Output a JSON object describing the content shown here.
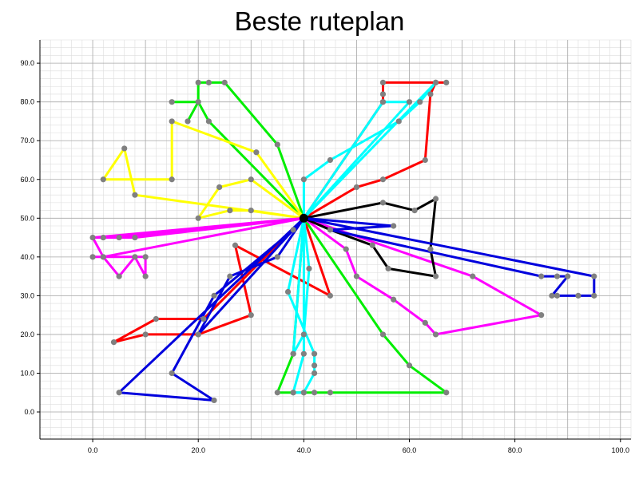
{
  "chart_data": {
    "type": "line",
    "title": "Beste ruteplan",
    "xlabel": "",
    "ylabel": "",
    "xlim": [
      -10,
      102
    ],
    "ylim": [
      -7,
      96
    ],
    "xticks": [
      0,
      20,
      40,
      60,
      80,
      100
    ],
    "yticks": [
      0,
      10,
      20,
      30,
      40,
      50,
      60,
      70,
      80,
      90
    ],
    "xtick_labels": [
      "0.0",
      "20.0",
      "40.0",
      "60.0",
      "80.0",
      "100.0"
    ],
    "ytick_labels": [
      "0.0",
      "10.0",
      "20.0",
      "30.0",
      "40.0",
      "50.0",
      "60.0",
      "70.0",
      "80.0",
      "90.0"
    ],
    "grid": true,
    "depot": [
      40,
      50
    ],
    "series": [
      {
        "name": "red",
        "color": "#ff0000",
        "points": [
          [
            40,
            50
          ],
          [
            45,
            30
          ],
          [
            27,
            43
          ],
          [
            30,
            25
          ],
          [
            20,
            20
          ],
          [
            10,
            20
          ],
          [
            4,
            18
          ],
          [
            12,
            24
          ],
          [
            21,
            24
          ],
          [
            40,
            50
          ],
          [
            50,
            58
          ],
          [
            55,
            60
          ],
          [
            63,
            65
          ],
          [
            64,
            82
          ],
          [
            65,
            85
          ],
          [
            67,
            85
          ],
          [
            55,
            85
          ],
          [
            55,
            82
          ],
          [
            55,
            80
          ],
          [
            40,
            50
          ]
        ]
      },
      {
        "name": "green",
        "color": "#00ee00",
        "points": [
          [
            40,
            50
          ],
          [
            35,
            69
          ],
          [
            25,
            85
          ],
          [
            22,
            85
          ],
          [
            20,
            85
          ],
          [
            20,
            80
          ],
          [
            18,
            75
          ],
          [
            20,
            80
          ],
          [
            15,
            80
          ],
          [
            20,
            80
          ],
          [
            22,
            75
          ],
          [
            40,
            50
          ],
          [
            55,
            20
          ],
          [
            60,
            12
          ],
          [
            67,
            5
          ],
          [
            45,
            5
          ],
          [
            42,
            5
          ],
          [
            40,
            5
          ],
          [
            38,
            5
          ],
          [
            35,
            5
          ],
          [
            38,
            15
          ],
          [
            40,
            50
          ]
        ]
      },
      {
        "name": "yellow",
        "color": "#ffff00",
        "points": [
          [
            40,
            50
          ],
          [
            31,
            67
          ],
          [
            15,
            75
          ],
          [
            15,
            60
          ],
          [
            2,
            60
          ],
          [
            6,
            68
          ],
          [
            8,
            56
          ],
          [
            40,
            50
          ],
          [
            30,
            52
          ],
          [
            26,
            52
          ],
          [
            20,
            50
          ],
          [
            24,
            58
          ],
          [
            30,
            60
          ],
          [
            40,
            50
          ]
        ]
      },
      {
        "name": "magenta",
        "color": "#ff00ff",
        "points": [
          [
            40,
            50
          ],
          [
            5,
            45
          ],
          [
            2,
            45
          ],
          [
            0,
            45
          ],
          [
            8,
            45
          ],
          [
            40,
            50
          ],
          [
            2,
            40
          ],
          [
            0,
            40
          ],
          [
            8,
            40
          ],
          [
            10,
            40
          ],
          [
            10,
            35
          ],
          [
            8,
            40
          ],
          [
            5,
            35
          ],
          [
            2,
            40
          ],
          [
            0,
            45
          ],
          [
            40,
            50
          ],
          [
            48,
            42
          ],
          [
            50,
            35
          ],
          [
            57,
            29
          ],
          [
            63,
            23
          ],
          [
            65,
            20
          ],
          [
            85,
            25
          ],
          [
            72,
            35
          ],
          [
            40,
            50
          ]
        ]
      },
      {
        "name": "cyan",
        "color": "#00ffff",
        "points": [
          [
            40,
            50
          ],
          [
            40,
            60
          ],
          [
            45,
            65
          ],
          [
            58,
            75
          ],
          [
            62,
            80
          ],
          [
            65,
            85
          ],
          [
            40,
            50
          ],
          [
            60,
            80
          ],
          [
            55,
            80
          ],
          [
            40,
            50
          ],
          [
            41,
            37
          ],
          [
            40,
            20
          ],
          [
            38,
            15
          ],
          [
            40,
            50
          ],
          [
            37,
            31
          ],
          [
            42,
            15
          ],
          [
            42,
            12
          ],
          [
            42,
            10
          ],
          [
            40,
            5
          ],
          [
            38,
            5
          ],
          [
            40,
            15
          ],
          [
            40,
            50
          ]
        ]
      },
      {
        "name": "black",
        "color": "#000000",
        "points": [
          [
            40,
            50
          ],
          [
            55,
            54
          ],
          [
            61,
            52
          ],
          [
            65,
            55
          ],
          [
            64,
            42
          ],
          [
            65,
            35
          ],
          [
            56,
            37
          ],
          [
            53,
            43
          ],
          [
            45,
            47
          ],
          [
            40,
            50
          ]
        ]
      },
      {
        "name": "blue",
        "color": "#0000dd",
        "points": [
          [
            40,
            50
          ],
          [
            57,
            48
          ],
          [
            45,
            47
          ],
          [
            85,
            35
          ],
          [
            88,
            35
          ],
          [
            90,
            35
          ],
          [
            87,
            30
          ],
          [
            88,
            30
          ],
          [
            92,
            30
          ],
          [
            95,
            30
          ],
          [
            95,
            35
          ],
          [
            40,
            50
          ],
          [
            38,
            47
          ],
          [
            23,
            30
          ],
          [
            15,
            10
          ],
          [
            23,
            3
          ],
          [
            5,
            5
          ],
          [
            40,
            50
          ],
          [
            35,
            40
          ],
          [
            26,
            35
          ],
          [
            20,
            20
          ],
          [
            40,
            50
          ]
        ]
      }
    ]
  }
}
